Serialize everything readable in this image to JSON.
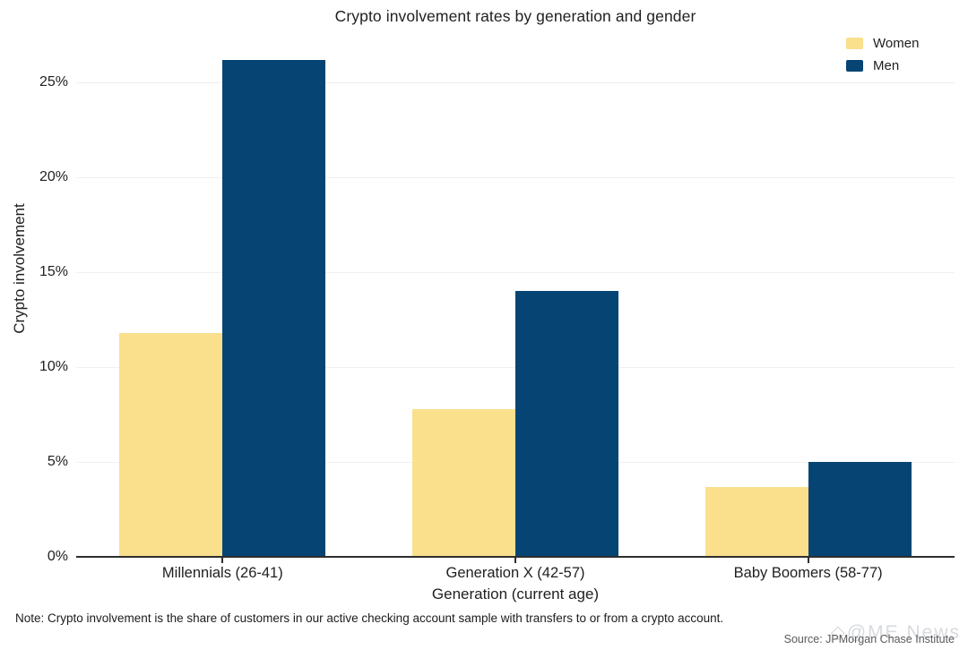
{
  "chart_data": {
    "type": "bar",
    "title": "Crypto involvement rates by generation and gender",
    "categories": [
      "Millennials (26-41)",
      "Generation X (42-57)",
      "Baby Boomers (58-77)"
    ],
    "series": [
      {
        "name": "Women",
        "color": "#FAE08D",
        "values": [
          11.8,
          7.8,
          3.7
        ]
      },
      {
        "name": "Men",
        "color": "#054473",
        "values": [
          26.2,
          14.0,
          5.0
        ]
      }
    ],
    "xlabel": "Generation (current age)",
    "ylabel": "Crypto involvement",
    "yticks": [
      0,
      5,
      10,
      15,
      20,
      25
    ],
    "ytick_labels": [
      "0%",
      "5%",
      "10%",
      "15%",
      "20%",
      "25%"
    ],
    "ylim": [
      0,
      27.5
    ],
    "grid": true,
    "legend_position": "top-right"
  },
  "note": "Note: Crypto involvement is the share of customers in our active checking account sample with transfers to or from a crypto account.",
  "source": "Source: JPMorgan Chase Institute",
  "watermark": "◇@ME News"
}
